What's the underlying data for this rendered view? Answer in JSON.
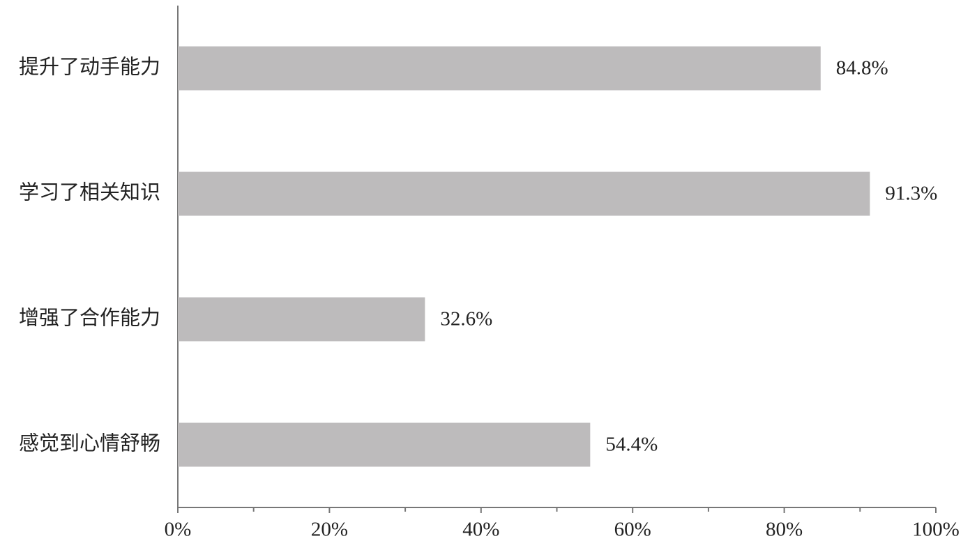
{
  "chart_data": {
    "type": "bar",
    "orientation": "horizontal",
    "categories": [
      "提升了动手能力",
      "学习了相关知识",
      "增强了合作能力",
      "感觉到心情舒畅"
    ],
    "values": [
      84.8,
      91.3,
      32.6,
      54.4
    ],
    "value_labels": [
      "84.8%",
      "91.3%",
      "32.6%",
      "54.4%"
    ],
    "color": "#bdbbbc",
    "xlim": [
      0,
      100
    ],
    "xticks": [
      {
        "value": 0,
        "label": "0%"
      },
      {
        "value": 20,
        "label": "20%"
      },
      {
        "value": 40,
        "label": "40%"
      },
      {
        "value": 60,
        "label": "60%"
      },
      {
        "value": 80,
        "label": "80%"
      },
      {
        "value": 100,
        "label": "100%"
      }
    ],
    "xminorticks": [
      10,
      30,
      50,
      70,
      90
    ]
  }
}
